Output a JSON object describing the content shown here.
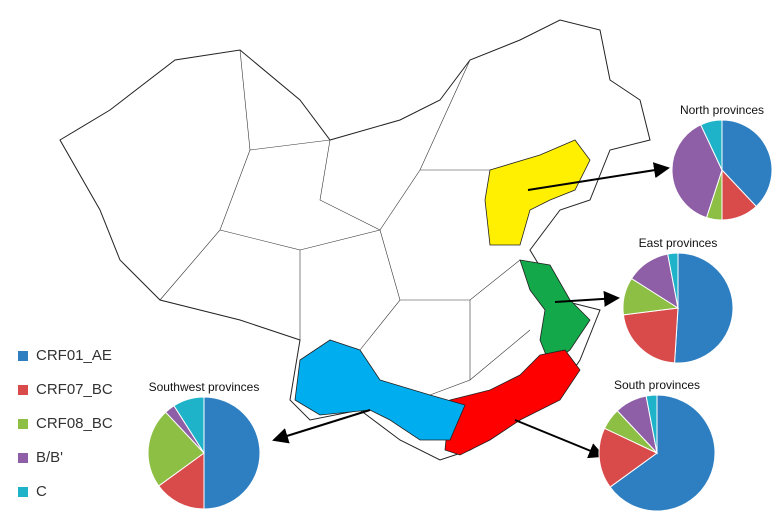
{
  "legend": {
    "labels": [
      "CRF01_AE",
      "CRF07_BC",
      "CRF08_BC",
      "B/B'",
      "C"
    ],
    "colors": [
      "#2e7fc1",
      "#d94b4b",
      "#8dbf45",
      "#8e5ea6",
      "#1fb3c9"
    ]
  },
  "chart_data": [
    {
      "type": "pie",
      "title": "North provinces",
      "values": [
        38,
        12,
        5,
        38,
        7
      ]
    },
    {
      "type": "pie",
      "title": "East provinces",
      "values": [
        51,
        22,
        11,
        13,
        3
      ]
    },
    {
      "type": "pie",
      "title": "South provinces",
      "values": [
        65,
        17,
        6,
        9,
        3
      ]
    },
    {
      "type": "pie",
      "title": "Southwest provinces",
      "values": [
        50,
        15,
        23,
        3,
        9
      ]
    }
  ]
}
